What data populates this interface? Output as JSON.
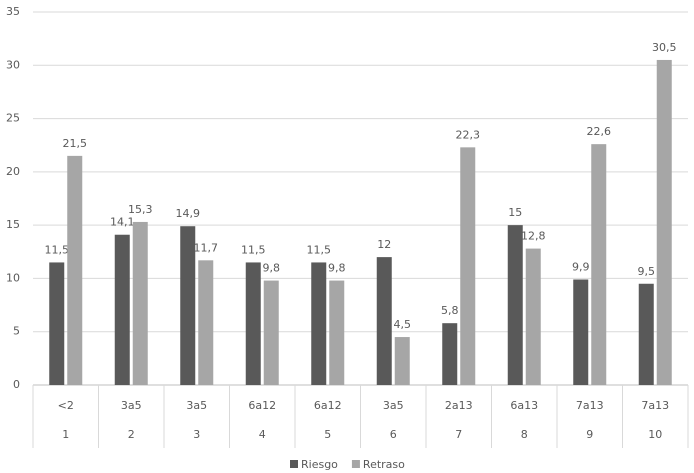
{
  "chart_data": {
    "type": "bar",
    "categories": [
      "<2",
      "3a5",
      "3a5",
      "6a12",
      "6a12",
      "3a5",
      "2a13",
      "6a13",
      "7a13",
      "7a13"
    ],
    "category_groups": [
      1,
      2,
      3,
      4,
      5,
      6,
      7,
      8,
      9,
      10
    ],
    "series": [
      {
        "name": "Riesgo",
        "color": "#595959",
        "values": [
          11.5,
          14.1,
          14.9,
          11.5,
          11.5,
          12,
          5.8,
          15,
          9.9,
          9.5
        ],
        "value_labels": [
          "11,5",
          "14,1",
          "14,9",
          "11,5",
          "11,5",
          "12",
          "5,8",
          "15",
          "9,9",
          "9,5"
        ]
      },
      {
        "name": "Retraso",
        "color": "#a6a6a6",
        "values": [
          21.5,
          15.3,
          11.7,
          9.8,
          9.8,
          4.5,
          22.3,
          12.8,
          22.6,
          30.5
        ],
        "value_labels": [
          "21,5",
          "15,3",
          "11,7",
          "9,8",
          "9,8",
          "4,5",
          "22,3",
          "12,8",
          "22,6",
          "30,5"
        ]
      }
    ],
    "ylim": [
      0,
      35
    ],
    "yticks": [
      0,
      5,
      10,
      15,
      20,
      25,
      30,
      35
    ],
    "grid": true,
    "legend": "bottom"
  }
}
